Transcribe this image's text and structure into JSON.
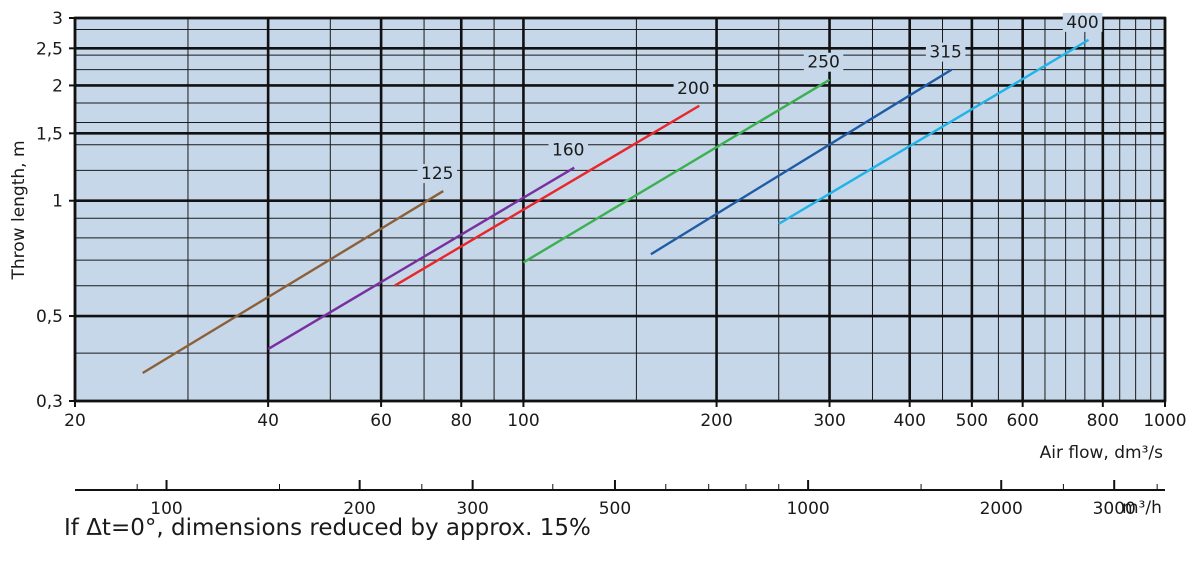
{
  "chart_data": {
    "type": "line",
    "x_scale": "log",
    "y_scale": "log",
    "xlim": [
      20,
      1000
    ],
    "ylim": [
      0.3,
      3
    ],
    "background_color": "#c5d7e8",
    "grid": true,
    "x_ticks": [
      "20",
      "40",
      "60",
      "80",
      "100",
      "200",
      "300",
      "400",
      "500",
      "600",
      "800",
      "1000"
    ],
    "y_ticks": [
      "0,3",
      "0,5",
      "1",
      "1,5",
      "2",
      "2,5",
      "3"
    ],
    "xlabel": "Air flow, dm³/s",
    "ylabel": "Throw length, m",
    "secondary_axis": {
      "label": "m³/h",
      "ticks": [
        "100",
        "200",
        "300",
        "500",
        "1000",
        "2000",
        "3000"
      ]
    },
    "series": [
      {
        "name": "125",
        "color": "#8b6038",
        "x": [
          25.5,
          75
        ],
        "y": [
          0.355,
          1.06
        ]
      },
      {
        "name": "160",
        "color": "#7a2fa0",
        "x": [
          40,
          120
        ],
        "y": [
          0.41,
          1.22
        ]
      },
      {
        "name": "200",
        "color": "#e8262b",
        "x": [
          63,
          188
        ],
        "y": [
          0.6,
          1.77
        ]
      },
      {
        "name": "250",
        "color": "#3ab04f",
        "x": [
          100,
          300
        ],
        "y": [
          0.69,
          2.07
        ]
      },
      {
        "name": "315",
        "color": "#1f5ba6",
        "x": [
          158,
          465
        ],
        "y": [
          0.725,
          2.2
        ]
      },
      {
        "name": "400",
        "color": "#1fb3e8",
        "x": [
          250,
          760
        ],
        "y": [
          0.87,
          2.63
        ]
      }
    ]
  },
  "footnote": "If Δt=0°, dimensions reduced by approx. 15%"
}
